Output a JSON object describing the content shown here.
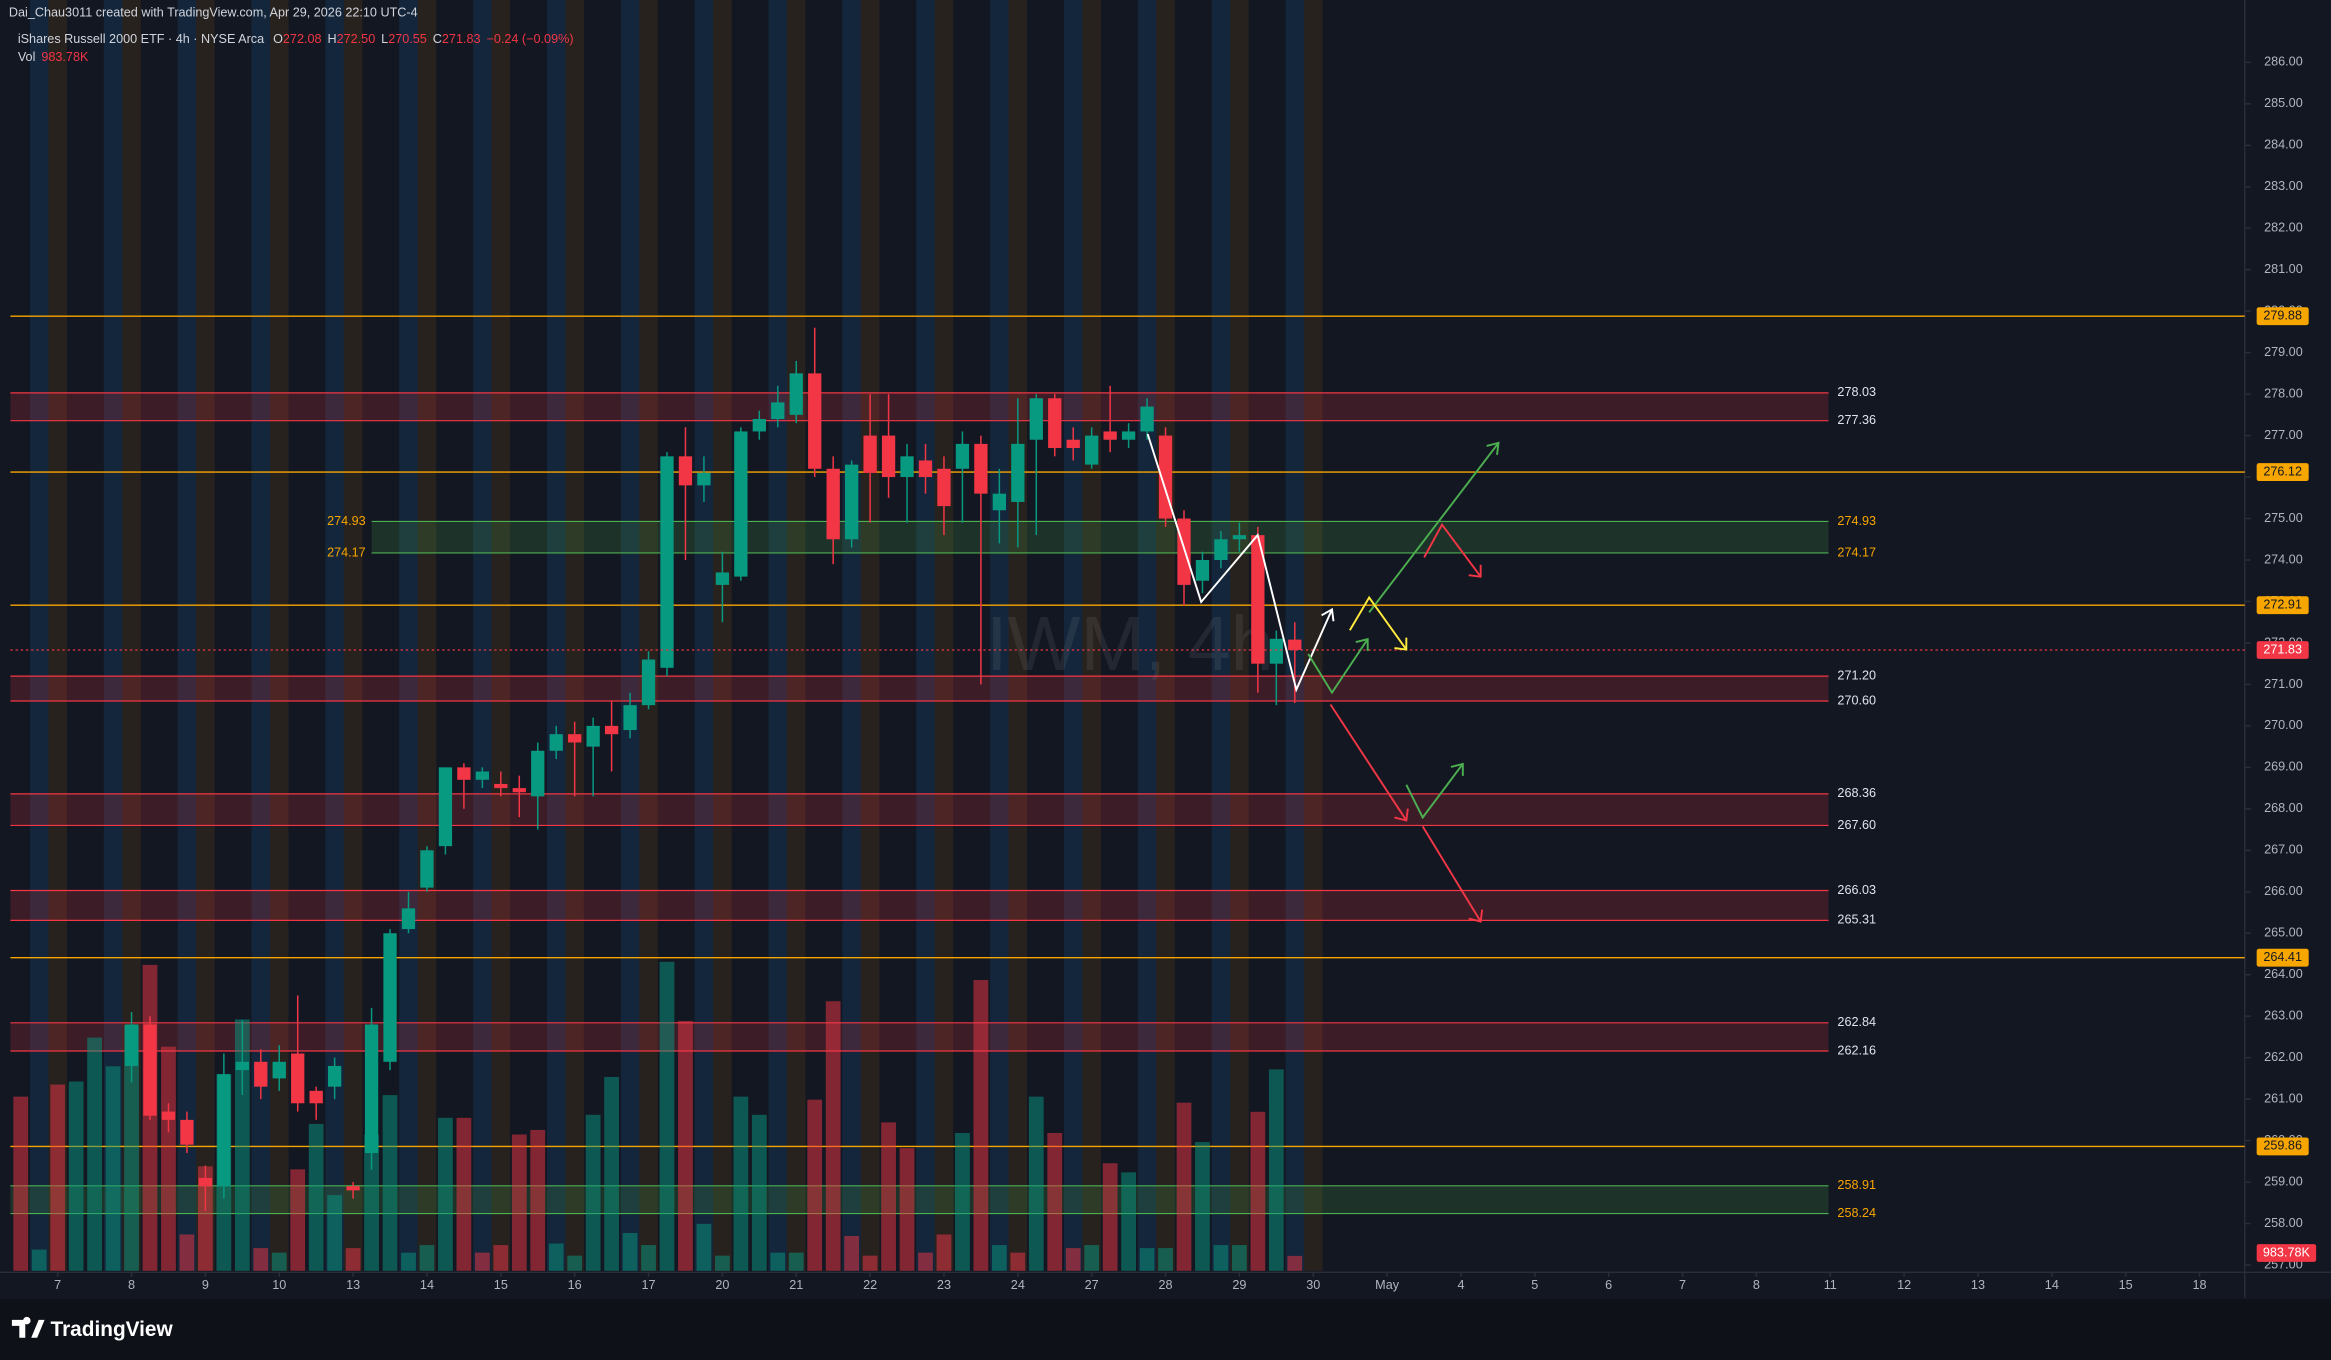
{
  "chart_data": {
    "type": "candlestick",
    "credit": "Dai_Chau3011 created with TradingView.com, Apr 29, 2026 22:10 UTC-4",
    "watermark": "IWM, 4h",
    "brand": "TradingView",
    "legend": {
      "symbol": "iShares Russell 2000 ETF · 4h · NYSE Arca",
      "fields": [
        {
          "key": "O",
          "value": "272.08"
        },
        {
          "key": "H",
          "value": "272.50"
        },
        {
          "key": "L",
          "value": "270.55"
        },
        {
          "key": "C",
          "value": "271.83"
        }
      ],
      "change": "−0.24 (−0.09%)"
    },
    "up_color": "#089981",
    "down_color": "#f23645",
    "x": [
      0,
      1,
      2,
      3,
      4,
      5,
      6,
      7,
      8,
      9,
      10,
      11,
      12,
      13,
      14,
      15,
      16,
      17,
      18,
      19,
      20,
      21,
      22,
      23,
      24,
      25,
      26,
      27,
      28,
      29,
      30,
      31,
      32,
      33,
      34,
      35,
      36,
      37,
      38,
      39,
      40,
      41,
      42,
      43,
      44,
      45,
      46,
      47,
      48,
      49,
      50,
      51,
      52,
      53,
      54,
      55,
      56,
      57,
      58,
      59,
      60,
      61,
      62,
      63,
      64,
      65,
      66,
      67,
      68,
      69
    ],
    "open": [
      null,
      null,
      null,
      null,
      null,
      null,
      261.8,
      262.8,
      260.7,
      260.5,
      259.1,
      258.9,
      261.7,
      261.9,
      261.5,
      262.1,
      261.2,
      261.3,
      258.9,
      259.7,
      261.9,
      265.1,
      266.1,
      267.1,
      269.0,
      268.7,
      268.6,
      268.5,
      268.3,
      269.4,
      269.8,
      269.5,
      270.0,
      269.9,
      270.5,
      271.4,
      276.5,
      275.8,
      273.4,
      273.6,
      277.1,
      277.4,
      277.5,
      278.5,
      276.2,
      274.5,
      277.0,
      277.0,
      276.0,
      276.4,
      276.2,
      276.2,
      276.8,
      275.2,
      275.4,
      276.9,
      277.9,
      276.9,
      276.3,
      277.1,
      276.9,
      277.1,
      277.0,
      275.0,
      273.5,
      274.0,
      274.5,
      274.6,
      271.5,
      272.08
    ],
    "high": [
      null,
      null,
      null,
      null,
      null,
      null,
      263.1,
      263.0,
      260.9,
      260.7,
      259.4,
      262.1,
      262.9,
      262.2,
      262.3,
      263.5,
      261.3,
      262.0,
      259.0,
      263.2,
      265.1,
      266.0,
      267.1,
      269.0,
      269.1,
      269.0,
      268.9,
      268.8,
      269.6,
      270.0,
      270.1,
      270.2,
      270.6,
      270.8,
      271.8,
      276.6,
      277.2,
      276.5,
      274.2,
      277.2,
      277.6,
      278.2,
      278.8,
      279.6,
      276.5,
      276.4,
      278.0,
      278.0,
      276.8,
      276.8,
      276.5,
      277.1,
      277.0,
      276.2,
      277.9,
      278.0,
      278.0,
      277.2,
      277.2,
      278.2,
      277.3,
      277.9,
      277.2,
      275.2,
      274.2,
      274.7,
      274.9,
      274.8,
      272.3,
      272.5
    ],
    "low": [
      null,
      null,
      null,
      null,
      null,
      null,
      261.4,
      260.5,
      260.2,
      259.7,
      258.3,
      258.6,
      261.1,
      261.0,
      261.2,
      260.7,
      260.5,
      261.0,
      258.6,
      259.3,
      261.7,
      265.0,
      266.0,
      266.9,
      268.0,
      268.5,
      268.3,
      267.8,
      267.5,
      269.2,
      268.3,
      268.3,
      268.9,
      269.7,
      270.4,
      271.2,
      274.0,
      275.4,
      272.5,
      273.5,
      276.9,
      277.2,
      277.3,
      276.0,
      273.9,
      274.3,
      274.9,
      275.5,
      274.9,
      275.6,
      274.6,
      274.9,
      271.0,
      274.4,
      274.3,
      274.6,
      276.5,
      276.4,
      276.2,
      276.6,
      276.7,
      276.9,
      274.8,
      272.9,
      273.2,
      273.8,
      274.2,
      270.8,
      270.5,
      270.55
    ],
    "close": [
      null,
      null,
      null,
      null,
      null,
      null,
      262.8,
      260.6,
      260.5,
      259.9,
      258.9,
      261.6,
      261.9,
      261.3,
      261.9,
      260.9,
      260.9,
      261.8,
      258.8,
      262.8,
      265.0,
      265.6,
      267.0,
      269.0,
      268.7,
      268.9,
      268.5,
      268.4,
      269.4,
      269.8,
      269.6,
      270.0,
      269.8,
      270.5,
      271.6,
      276.5,
      275.8,
      276.1,
      273.7,
      277.1,
      277.4,
      277.8,
      278.5,
      276.2,
      274.5,
      276.3,
      276.1,
      276.0,
      276.5,
      276.0,
      275.3,
      276.8,
      275.6,
      275.6,
      276.8,
      277.9,
      276.7,
      276.7,
      277.0,
      276.9,
      277.1,
      277.7,
      275.0,
      273.4,
      274.0,
      274.5,
      274.6,
      271.5,
      272.1,
      271.83
    ],
    "volume": {
      "name": "Vol",
      "values": [
        11500000,
        1400000,
        12300000,
        12500000,
        15400000,
        13500000,
        16200000,
        20200000,
        14800000,
        2400000,
        6900000,
        13000000,
        16600000,
        1500000,
        1200000,
        6700000,
        9700000,
        5000000,
        1500000,
        9000000,
        11600000,
        1200000,
        1700000,
        10100000,
        10100000,
        1200000,
        1700000,
        9000000,
        9300000,
        1800000,
        1000000,
        10300000,
        12800000,
        2500000,
        1700000,
        20400000,
        16500000,
        3100000,
        1000000,
        11500000,
        10300000,
        1200000,
        1200000,
        11300000,
        17800000,
        2300000,
        1000000,
        9800000,
        8100000,
        1200000,
        2400000,
        9100000,
        19200000,
        1700000,
        1200000,
        11500000,
        9100000,
        1500000,
        1700000,
        7100000,
        6500000,
        1500000,
        1500000,
        11100000,
        8500000,
        1700000,
        1700000,
        10500000,
        13300000,
        983780
      ],
      "value_labels": [
        null,
        null,
        null,
        null,
        null,
        null,
        null,
        null,
        null,
        null,
        null,
        null,
        null,
        null,
        null,
        null,
        null,
        null,
        null,
        null,
        null,
        null,
        null,
        null,
        null,
        null,
        null,
        null,
        null,
        null,
        null,
        null,
        null,
        null,
        null,
        null,
        null,
        null,
        null,
        null,
        null,
        null,
        null,
        null,
        null,
        null,
        null,
        null,
        null,
        null,
        null,
        null,
        null,
        null,
        null,
        null,
        null,
        null,
        null,
        null,
        null,
        null,
        null,
        null,
        null,
        null,
        null,
        null,
        null,
        "983.78K"
      ],
      "colors": [
        "#f23645",
        "#089981",
        "#f23645",
        "#089981",
        "#089981",
        "#089981",
        "#089981",
        "#f23645",
        "#f23645",
        "#f23645",
        "#f23645",
        "#089981",
        "#089981",
        "#f23645",
        "#089981",
        "#f23645",
        "#089981",
        "#089981",
        "#f23645",
        "#089981",
        "#089981",
        "#089981",
        "#089981",
        "#089981",
        "#f23645",
        "#f23645",
        "#f23645",
        "#f23645",
        "#f23645",
        "#089981",
        "#089981",
        "#089981",
        "#089981",
        "#089981",
        "#089981",
        "#089981",
        "#f23645",
        "#089981",
        "#089981",
        "#089981",
        "#089981",
        "#089981",
        "#089981",
        "#f23645",
        "#f23645",
        "#f23645",
        "#f23645",
        "#f23645",
        "#f23645",
        "#f23645",
        "#f23645",
        "#089981",
        "#f23645",
        "#089981",
        "#f23645",
        "#089981",
        "#f23645",
        "#f23645",
        "#089981",
        "#f23645",
        "#089981",
        "#089981",
        "#089981",
        "#f23645",
        "#089981",
        "#089981",
        "#089981",
        "#f23645",
        "#089981",
        "#f23645"
      ],
      "vlim": [
        0,
        21000000
      ]
    },
    "zones": [
      {
        "values": [
          278.03,
          277.36
        ],
        "value_labels": [
          "278.03",
          "277.36"
        ],
        "color": "#f23645"
      },
      {
        "values": [
          274.93,
          274.17
        ],
        "value_labels": [
          "274.93",
          "274.17"
        ],
        "color": "#4caf50",
        "labels_left": true
      },
      {
        "values": [
          271.2,
          270.6
        ],
        "value_labels": [
          "271.20",
          "270.60"
        ],
        "color": "#f23645"
      },
      {
        "values": [
          268.36,
          267.6
        ],
        "value_labels": [
          "268.36",
          "267.60"
        ],
        "color": "#f23645"
      },
      {
        "values": [
          266.03,
          265.31
        ],
        "value_labels": [
          "266.03",
          "265.31"
        ],
        "color": "#f23645"
      },
      {
        "values": [
          262.84,
          262.16
        ],
        "value_labels": [
          "262.84",
          "262.16"
        ],
        "color": "#f23645"
      },
      {
        "values": [
          258.91,
          258.24
        ],
        "value_labels": [
          "258.91",
          "258.24"
        ],
        "color": "#4caf50"
      }
    ],
    "lines": [
      {
        "value": 279.88,
        "label": "279.88",
        "color": "#f7a600"
      },
      {
        "value": 276.12,
        "label": "276.12",
        "color": "#f7a600"
      },
      {
        "value": 272.91,
        "label": "272.91",
        "color": "#f7a600"
      },
      {
        "value": 264.41,
        "label": "264.41",
        "color": "#f7a600"
      },
      {
        "value": 259.86,
        "label": "259.86",
        "color": "#f7a600"
      }
    ],
    "xlim": [
      -0.56,
      120.45
    ],
    "xticks": [
      {
        "value": 2,
        "label": "7"
      },
      {
        "value": 6,
        "label": "8"
      },
      {
        "value": 10,
        "label": "9"
      },
      {
        "value": 14,
        "label": "10"
      },
      {
        "value": 18,
        "label": "13"
      },
      {
        "value": 22,
        "label": "14"
      },
      {
        "value": 26,
        "label": "15"
      },
      {
        "value": 30,
        "label": "16"
      },
      {
        "value": 34,
        "label": "17"
      },
      {
        "value": 38,
        "label": "20"
      },
      {
        "value": 42,
        "label": "21"
      },
      {
        "value": 46,
        "label": "22"
      },
      {
        "value": 50,
        "label": "23"
      },
      {
        "value": 54,
        "label": "24"
      },
      {
        "value": 58,
        "label": "27"
      },
      {
        "value": 62,
        "label": "28"
      },
      {
        "value": 66,
        "label": "29"
      },
      {
        "value": 70,
        "label": "30"
      },
      {
        "value": 74,
        "label": "May"
      },
      {
        "value": 78,
        "label": "4"
      },
      {
        "value": 82,
        "label": "5"
      },
      {
        "value": 86,
        "label": "6"
      },
      {
        "value": 90,
        "label": "7"
      },
      {
        "value": 94,
        "label": "8"
      },
      {
        "value": 98,
        "label": "11"
      },
      {
        "value": 102,
        "label": "12"
      },
      {
        "value": 106,
        "label": "13"
      },
      {
        "value": 110,
        "label": "14"
      },
      {
        "value": 114,
        "label": "15"
      },
      {
        "value": 118,
        "label": "18"
      }
    ],
    "ylim": [
      256.86,
      287.36
    ],
    "yticks": [
      {
        "value": 257,
        "label": "257.00"
      },
      {
        "value": 258,
        "label": "258.00"
      },
      {
        "value": 259,
        "label": "259.00"
      },
      {
        "value": 260,
        "label": "260.00"
      },
      {
        "value": 261,
        "label": "261.00"
      },
      {
        "value": 262,
        "label": "262.00"
      },
      {
        "value": 263,
        "label": "263.00"
      },
      {
        "value": 264,
        "label": "264.00"
      },
      {
        "value": 265,
        "label": "265.00"
      },
      {
        "value": 266,
        "label": "266.00"
      },
      {
        "value": 267,
        "label": "267.00"
      },
      {
        "value": 268,
        "label": "268.00"
      },
      {
        "value": 269,
        "label": "269.00"
      },
      {
        "value": 270,
        "label": "270.00"
      },
      {
        "value": 271,
        "label": "271.00"
      },
      {
        "value": 272,
        "label": "272.00"
      },
      {
        "value": 273,
        "label": "273.00"
      },
      {
        "value": 274,
        "label": "274.00"
      },
      {
        "value": 275,
        "label": "275.00"
      },
      {
        "value": 276,
        "label": "276.00"
      },
      {
        "value": 277,
        "label": "277.00"
      },
      {
        "value": 278,
        "label": "278.00"
      },
      {
        "value": 279,
        "label": "279.00"
      },
      {
        "value": 280,
        "label": "280.00"
      },
      {
        "value": 281,
        "label": "281.00"
      },
      {
        "value": 282,
        "label": "282.00"
      },
      {
        "value": 283,
        "label": "283.00"
      },
      {
        "value": 284,
        "label": "284.00"
      },
      {
        "value": 285,
        "label": "285.00"
      },
      {
        "value": 286,
        "label": "286.00"
      }
    ],
    "grid": false
  }
}
